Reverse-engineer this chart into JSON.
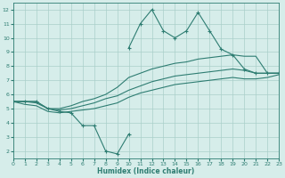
{
  "xlabel": "Humidex (Indice chaleur)",
  "x_values": [
    0,
    1,
    2,
    3,
    4,
    5,
    6,
    7,
    8,
    9,
    10,
    11,
    12,
    13,
    14,
    15,
    16,
    17,
    18,
    19,
    20,
    21,
    22,
    23
  ],
  "line_jagged": [
    5.5,
    5.5,
    5.5,
    5.0,
    4.8,
    4.7,
    3.8,
    3.8,
    2.0,
    1.8,
    3.2,
    null,
    null,
    null,
    null,
    null,
    null,
    null,
    null,
    null,
    null,
    null,
    null,
    null
  ],
  "line_top": [
    null,
    null,
    null,
    null,
    null,
    null,
    null,
    null,
    null,
    null,
    9.3,
    11.0,
    12.0,
    10.5,
    10.0,
    10.5,
    11.8,
    10.5,
    9.2,
    8.8,
    7.8,
    7.5,
    7.5,
    7.5
  ],
  "line_upper": [
    5.5,
    5.5,
    5.5,
    5.0,
    5.0,
    5.2,
    5.5,
    5.7,
    6.0,
    6.5,
    7.2,
    7.5,
    7.8,
    8.0,
    8.2,
    8.3,
    8.5,
    8.6,
    8.7,
    8.8,
    8.7,
    8.7,
    7.5,
    7.5
  ],
  "line_middle": [
    5.5,
    5.5,
    5.4,
    5.0,
    4.9,
    5.0,
    5.2,
    5.4,
    5.7,
    5.9,
    6.3,
    6.6,
    6.9,
    7.1,
    7.3,
    7.4,
    7.5,
    7.6,
    7.7,
    7.8,
    7.7,
    7.5,
    7.5,
    7.5
  ],
  "line_lower": [
    5.5,
    5.3,
    5.2,
    4.8,
    4.7,
    4.8,
    4.9,
    5.0,
    5.2,
    5.4,
    5.8,
    6.1,
    6.3,
    6.5,
    6.7,
    6.8,
    6.9,
    7.0,
    7.1,
    7.2,
    7.1,
    7.1,
    7.2,
    7.4
  ],
  "color": "#2e7d72",
  "bg_color": "#d6edea",
  "grid_color": "#aacfca",
  "ylim": [
    1.5,
    12.5
  ],
  "xlim": [
    0,
    23
  ],
  "yticks": [
    2,
    3,
    4,
    5,
    6,
    7,
    8,
    9,
    10,
    11,
    12
  ],
  "xticks": [
    0,
    1,
    2,
    3,
    4,
    5,
    6,
    7,
    8,
    9,
    10,
    11,
    12,
    13,
    14,
    15,
    16,
    17,
    18,
    19,
    20,
    21,
    22,
    23
  ]
}
